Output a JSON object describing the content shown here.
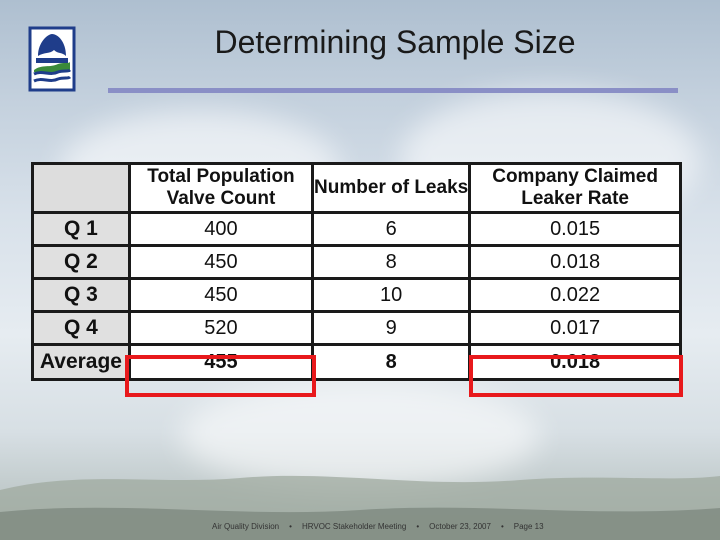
{
  "slide": {
    "title": "Determining Sample Size"
  },
  "table": {
    "headers": [
      "",
      "Total Population Valve Count",
      "Number of Leaks",
      "Company Claimed Leaker Rate"
    ],
    "rows": [
      {
        "label": "Q 1",
        "values": [
          "400",
          "6",
          "0.015"
        ]
      },
      {
        "label": "Q 2",
        "values": [
          "450",
          "8",
          "0.018"
        ]
      },
      {
        "label": "Q 3",
        "values": [
          "450",
          "10",
          "0.022"
        ]
      },
      {
        "label": "Q 4",
        "values": [
          "520",
          "9",
          "0.017"
        ]
      },
      {
        "label": "Average",
        "values": [
          "455",
          "8",
          "0.018"
        ]
      }
    ],
    "highlight_color": "#e8191c"
  },
  "footer": {
    "division": "Air Quality Division",
    "meeting": "HRVOC Stakeholder Meeting",
    "date": "October 23, 2007",
    "page": "Page 13"
  }
}
